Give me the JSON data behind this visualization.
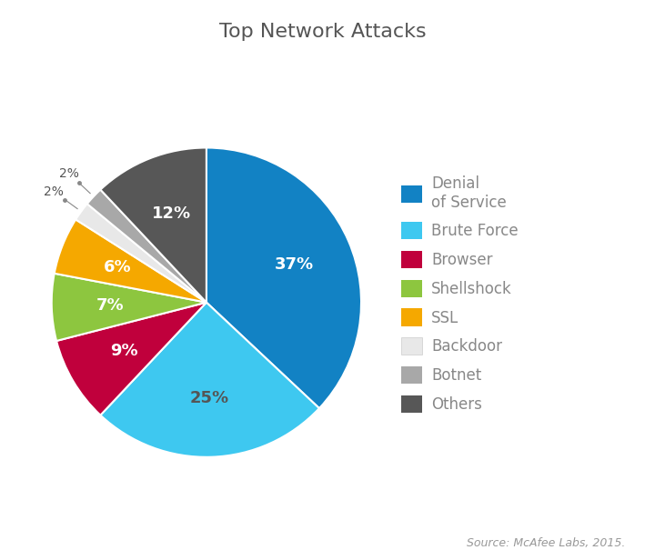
{
  "title": "Top Network Attacks",
  "source_text": "Source: McAfee Labs, 2015.",
  "legend_labels": [
    "Denial\nof Service",
    "Brute Force",
    "Browser",
    "Shellshock",
    "SSL",
    "Backdoor",
    "Botnet",
    "Others"
  ],
  "values": [
    37,
    25,
    9,
    7,
    6,
    2,
    2,
    12
  ],
  "pct_labels": [
    "37%",
    "25%",
    "9%",
    "7%",
    "6%",
    "2%",
    "2%",
    "12%"
  ],
  "colors": [
    "#1282C4",
    "#3EC8F0",
    "#C0003C",
    "#8DC63F",
    "#F5A800",
    "#E8E8E8",
    "#A8A8A8",
    "#575757"
  ],
  "startangle": 90,
  "background_color": "#FFFFFF",
  "title_fontsize": 16,
  "title_color": "#555555",
  "label_fontsize": 13,
  "legend_text_color": "#888888",
  "legend_fontsize": 12,
  "source_fontsize": 9,
  "source_color": "#999999"
}
